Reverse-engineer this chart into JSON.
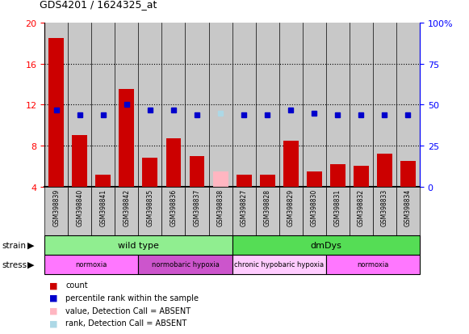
{
  "title": "GDS4201 / 1624325_at",
  "samples": [
    "GSM398839",
    "GSM398840",
    "GSM398841",
    "GSM398842",
    "GSM398835",
    "GSM398836",
    "GSM398837",
    "GSM398838",
    "GSM398827",
    "GSM398828",
    "GSM398829",
    "GSM398830",
    "GSM398831",
    "GSM398832",
    "GSM398833",
    "GSM398834"
  ],
  "count_values": [
    18.5,
    9.0,
    5.2,
    13.5,
    6.8,
    8.7,
    7.0,
    5.5,
    5.2,
    5.2,
    8.5,
    5.5,
    6.2,
    6.0,
    7.2,
    6.5
  ],
  "count_absent": [
    false,
    false,
    false,
    false,
    false,
    false,
    false,
    true,
    false,
    false,
    false,
    false,
    false,
    false,
    false,
    false
  ],
  "percentile_values": [
    11.5,
    11.0,
    11.0,
    12.0,
    11.5,
    11.5,
    11.0,
    11.2,
    11.0,
    11.0,
    11.5,
    11.2,
    11.0,
    11.0,
    11.0,
    11.0
  ],
  "percentile_absent": [
    false,
    false,
    false,
    false,
    false,
    false,
    false,
    true,
    false,
    false,
    false,
    false,
    false,
    false,
    false,
    false
  ],
  "ylim_left": [
    4,
    20
  ],
  "ylim_right": [
    0,
    100
  ],
  "yticks_left": [
    4,
    8,
    12,
    16,
    20
  ],
  "yticks_right": [
    0,
    25,
    50,
    75,
    100
  ],
  "color_count": "#cc0000",
  "color_count_absent": "#ffb6c1",
  "color_percentile": "#0000cc",
  "color_percentile_absent": "#add8e6",
  "strain_groups": [
    {
      "label": "wild type",
      "start": 0,
      "end": 8,
      "color": "#90ee90"
    },
    {
      "label": "dmDys",
      "start": 8,
      "end": 16,
      "color": "#55dd55"
    }
  ],
  "stress_groups": [
    {
      "label": "normoxia",
      "start": 0,
      "end": 4,
      "color": "#ff77ff"
    },
    {
      "label": "normobaric hypoxia",
      "start": 4,
      "end": 8,
      "color": "#cc55cc"
    },
    {
      "label": "chronic hypobaric hypoxia",
      "start": 8,
      "end": 12,
      "color": "#ffccff"
    },
    {
      "label": "normoxia",
      "start": 12,
      "end": 16,
      "color": "#ff77ff"
    }
  ],
  "sample_bg_color": "#c8c8c8",
  "legend_items": [
    {
      "label": "count",
      "color": "#cc0000"
    },
    {
      "label": "percentile rank within the sample",
      "color": "#0000cc"
    },
    {
      "label": "value, Detection Call = ABSENT",
      "color": "#ffb6c1"
    },
    {
      "label": "rank, Detection Call = ABSENT",
      "color": "#add8e6"
    }
  ]
}
